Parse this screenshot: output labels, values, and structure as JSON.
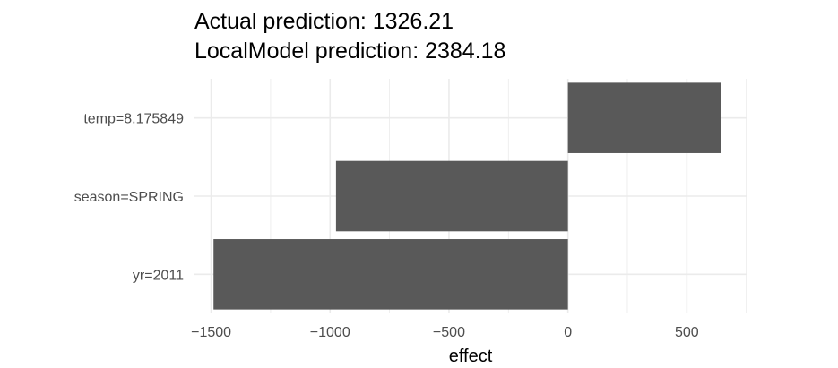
{
  "chart_data": {
    "type": "bar",
    "orientation": "horizontal",
    "title": "Actual prediction: 1326.21",
    "subtitle": "LocalModel prediction: 2384.18",
    "xlabel": "effect",
    "ylabel": "",
    "categories": [
      "temp=8.175849",
      "season=SPRING",
      "yr=2011"
    ],
    "values": [
      645,
      -975,
      -1490
    ],
    "xlim": [
      -1570,
      755
    ],
    "xticks": [
      -1500,
      -1000,
      -500,
      0,
      500
    ],
    "xtick_labels": [
      "−1500",
      "−1000",
      "−500",
      "0",
      "500"
    ],
    "grid": true,
    "legend": "none",
    "colors": {
      "bar": "#595959",
      "grid": "#ebebeb",
      "text": "#4d4d4d"
    }
  }
}
